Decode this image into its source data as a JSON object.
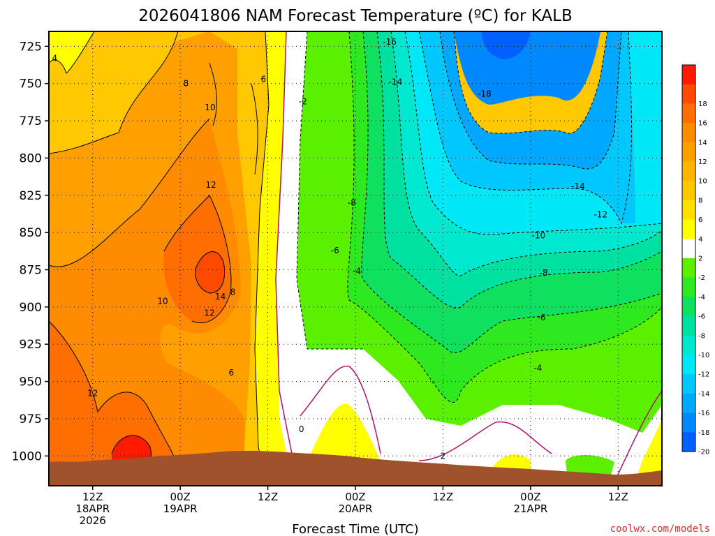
{
  "chart_data": {
    "type": "contour",
    "title": "2026041806 NAM Forecast Temperature (ºC) for KALB",
    "xlabel": "Forecast Time (UTC)",
    "ylabel": "",
    "y_axis": {
      "label": "",
      "scale": "pressure",
      "inverted": true,
      "range": [
        715,
        1020
      ],
      "ticks": [
        "725",
        "750",
        "775",
        "800",
        "825",
        "850",
        "875",
        "900",
        "925",
        "950",
        "975",
        "1000"
      ]
    },
    "x_axis": {
      "ticks": [
        {
          "line1": "12Z",
          "line2": "18APR",
          "line3": "2026",
          "hours": 6
        },
        {
          "line1": "00Z",
          "line2": "19APR",
          "line3": "",
          "hours": 18
        },
        {
          "line1": "12Z",
          "line2": "",
          "line3": "",
          "hours": 30
        },
        {
          "line1": "00Z",
          "line2": "20APR",
          "line3": "",
          "hours": 42
        },
        {
          "line1": "12Z",
          "line2": "",
          "line3": "",
          "hours": 54
        },
        {
          "line1": "00Z",
          "line2": "21APR",
          "line3": "",
          "hours": 66
        },
        {
          "line1": "12Z",
          "line2": "",
          "line3": "",
          "hours": 78
        }
      ],
      "range_hours": [
        0,
        84
      ]
    },
    "grid": true,
    "colorbar": {
      "placement": "right",
      "levels": [
        {
          "label": "",
          "color": "#ff1a00"
        },
        {
          "label": "18",
          "color": "#ff4a00"
        },
        {
          "label": "16",
          "color": "#ff6e00"
        },
        {
          "label": "14",
          "color": "#ff8c00"
        },
        {
          "label": "12",
          "color": "#ffa000"
        },
        {
          "label": "10",
          "color": "#ffb400"
        },
        {
          "label": "8",
          "color": "#ffc800"
        },
        {
          "label": "6",
          "color": "#ffde00"
        },
        {
          "label": "4",
          "color": "#ffff00"
        },
        {
          "label": "2",
          "color": "#ffffff"
        },
        {
          "label": "-2",
          "color": "#5af000"
        },
        {
          "label": "-4",
          "color": "#2ee820"
        },
        {
          "label": "-6",
          "color": "#10e060"
        },
        {
          "label": "-8",
          "color": "#00e0a0"
        },
        {
          "label": "-10",
          "color": "#00e8d0"
        },
        {
          "label": "-12",
          "color": "#00e8f8"
        },
        {
          "label": "-14",
          "color": "#00c8ff"
        },
        {
          "label": "-16",
          "color": "#00a8ff"
        },
        {
          "label": "-18",
          "color": "#0088ff"
        },
        {
          "label": "-20",
          "color": "#0060ff"
        }
      ]
    },
    "contour_labels": [
      {
        "text": "4",
        "hours": 0.8,
        "p": 733
      },
      {
        "text": "8",
        "hours": 18.8,
        "p": 750
      },
      {
        "text": "6",
        "hours": 29.4,
        "p": 747
      },
      {
        "text": "-2",
        "hours": 34.8,
        "p": 762
      },
      {
        "text": "-16",
        "hours": 46.7,
        "p": 722
      },
      {
        "text": "-14",
        "hours": 47.5,
        "p": 749
      },
      {
        "text": "-18",
        "hours": 59.7,
        "p": 757
      },
      {
        "text": "10",
        "hours": 22.1,
        "p": 766
      },
      {
        "text": "12",
        "hours": 22.2,
        "p": 818
      },
      {
        "text": "-8",
        "hours": 41.5,
        "p": 830
      },
      {
        "text": "-14",
        "hours": 72.5,
        "p": 819
      },
      {
        "text": "-12",
        "hours": 75.6,
        "p": 838
      },
      {
        "text": "-10",
        "hours": 67.1,
        "p": 852
      },
      {
        "text": "-6",
        "hours": 39.2,
        "p": 862
      },
      {
        "text": "-8",
        "hours": 67.8,
        "p": 877
      },
      {
        "text": "-4",
        "hours": 42.2,
        "p": 876
      },
      {
        "text": "10",
        "hours": 15.6,
        "p": 896
      },
      {
        "text": "14",
        "hours": 23.5,
        "p": 893
      },
      {
        "text": "8",
        "hours": 25.2,
        "p": 890
      },
      {
        "text": "12",
        "hours": 22.0,
        "p": 904
      },
      {
        "text": "-6",
        "hours": 67.5,
        "p": 907
      },
      {
        "text": "6",
        "hours": 25.0,
        "p": 944
      },
      {
        "text": "-4",
        "hours": 67.0,
        "p": 941
      },
      {
        "text": "12",
        "hours": 6.0,
        "p": 958
      },
      {
        "text": "0",
        "hours": 34.6,
        "p": 982
      },
      {
        "text": "2",
        "hours": 54.0,
        "p": 1000
      }
    ]
  },
  "credit": "coolwx.com/models"
}
